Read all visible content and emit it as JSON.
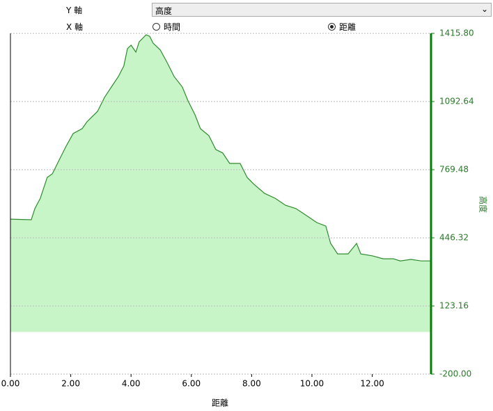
{
  "controls": {
    "y_axis_label": "Y 軸",
    "y_axis_select": "高度",
    "x_axis_label": "X 軸",
    "x_axis_options": [
      {
        "label": "時間",
        "checked": false
      },
      {
        "label": "距離",
        "checked": true
      }
    ]
  },
  "chart_data": {
    "type": "area",
    "x_label": "距離",
    "y_label": "高度",
    "color": "#2e8b2e",
    "fill": "#c8f5c8",
    "axis_color": "#008000",
    "x": [
      0,
      0.69,
      0.81,
      0.99,
      1.22,
      1.39,
      1.62,
      1.85,
      2.08,
      2.38,
      2.54,
      2.89,
      3.12,
      3.35,
      3.58,
      3.76,
      3.88,
      4.0,
      4.16,
      4.27,
      4.5,
      4.62,
      4.73,
      4.97,
      5.2,
      5.43,
      5.7,
      5.89,
      6.12,
      6.3,
      6.58,
      6.81,
      7.04,
      7.27,
      7.62,
      7.85,
      8.08,
      8.43,
      8.78,
      9.12,
      9.47,
      9.82,
      10.16,
      10.46,
      10.62,
      10.85,
      11.2,
      11.48,
      11.62,
      12.01,
      12.36,
      12.7,
      12.93,
      13.28,
      13.63,
      13.95
    ],
    "values": [
      535,
      532,
      585,
      634,
      733,
      750,
      816,
      882,
      941,
      964,
      997,
      1046,
      1112,
      1162,
      1211,
      1261,
      1343,
      1360,
      1327,
      1376,
      1409,
      1402,
      1370,
      1337,
      1277,
      1211,
      1162,
      1096,
      1030,
      964,
      931,
      865,
      849,
      799,
      799,
      733,
      700,
      657,
      634,
      601,
      585,
      552,
      519,
      502,
      420,
      370,
      370,
      420,
      370,
      361,
      347,
      347,
      337,
      344,
      337,
      337
    ],
    "xlim": [
      0,
      13.95
    ],
    "ylim": [
      -200,
      1415.8
    ],
    "xticks": [
      {
        "value": 0,
        "label": "0.00"
      },
      {
        "value": 2,
        "label": "2.00"
      },
      {
        "value": 4,
        "label": "4.00"
      },
      {
        "value": 6,
        "label": "6.00"
      },
      {
        "value": 8,
        "label": "8.00"
      },
      {
        "value": 10,
        "label": "10.00"
      },
      {
        "value": 12,
        "label": "12.00"
      }
    ],
    "yticks": [
      {
        "value": -200,
        "label": "-200.00"
      },
      {
        "value": 123.16,
        "label": "123.16"
      },
      {
        "value": 446.32,
        "label": "446.32"
      },
      {
        "value": 769.48,
        "label": "769.48"
      },
      {
        "value": 1092.64,
        "label": "1092.64"
      },
      {
        "value": 1415.8,
        "label": "1415.80"
      }
    ],
    "grid": true
  }
}
